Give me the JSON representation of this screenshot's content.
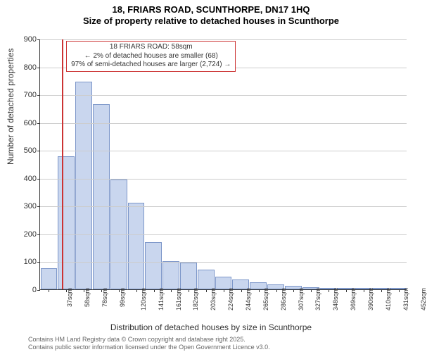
{
  "title": {
    "line1": "18, FRIARS ROAD, SCUNTHORPE, DN17 1HQ",
    "line2": "Size of property relative to detached houses in Scunthorpe"
  },
  "chart": {
    "type": "histogram",
    "ylim": [
      0,
      900
    ],
    "ytick_step": 100,
    "yticks": [
      0,
      100,
      200,
      300,
      400,
      500,
      600,
      700,
      800,
      900
    ],
    "x_categories": [
      "37sqm",
      "58sqm",
      "78sqm",
      "99sqm",
      "120sqm",
      "141sqm",
      "161sqm",
      "182sqm",
      "203sqm",
      "224sqm",
      "244sqm",
      "265sqm",
      "286sqm",
      "307sqm",
      "327sqm",
      "348sqm",
      "369sqm",
      "390sqm",
      "410sqm",
      "431sqm",
      "452sqm"
    ],
    "values": [
      75,
      478,
      745,
      665,
      395,
      310,
      170,
      100,
      95,
      70,
      45,
      35,
      25,
      18,
      12,
      8,
      5,
      3,
      2,
      4,
      6
    ],
    "bar_fill": "#c9d6ee",
    "bar_stroke": "#7c96c9",
    "grid_color": "#cccccc",
    "background": "#ffffff",
    "axis_color": "#333333",
    "marker": {
      "position_index": 1,
      "color": "#cc3333"
    },
    "annotation": {
      "line1": "18 FRIARS ROAD: 58sqm",
      "line2": "← 2% of detached houses are smaller (68)",
      "line3": "97% of semi-detached houses are larger (2,724) →",
      "border_color": "#cc3333",
      "bg": "#ffffff"
    },
    "ylabel": "Number of detached properties",
    "xlabel": "Distribution of detached houses by size in Scunthorpe",
    "label_fontsize": 12,
    "title_fontsize": 13
  },
  "footer": {
    "line1": "Contains HM Land Registry data © Crown copyright and database right 2025.",
    "line2": "Contains public sector information licensed under the Open Government Licence v3.0."
  }
}
